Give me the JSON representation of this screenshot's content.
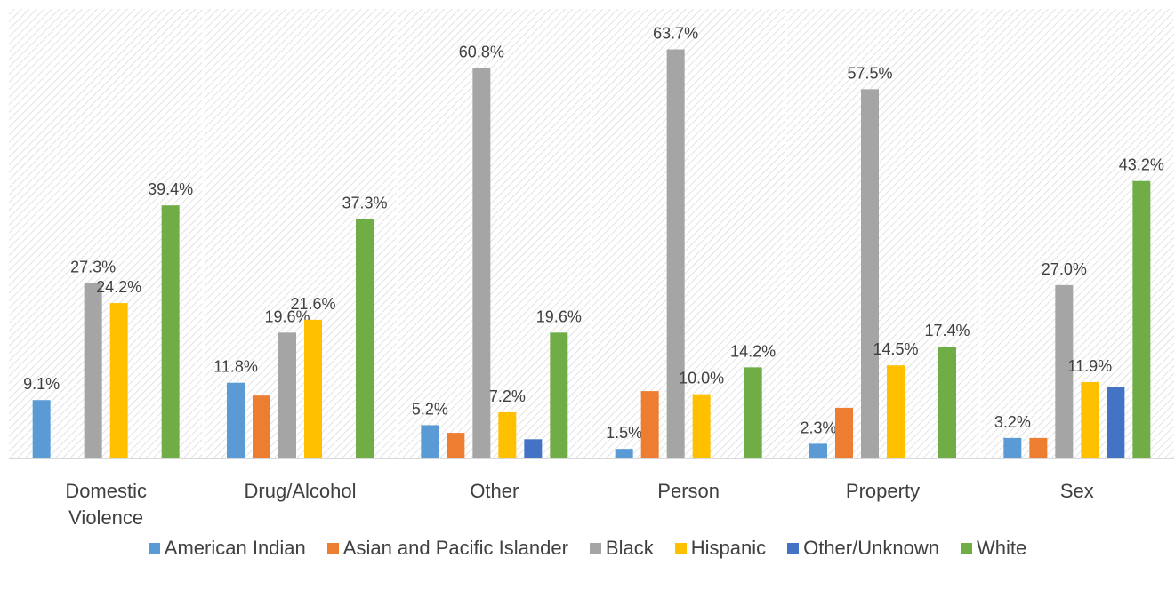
{
  "chart_data": {
    "type": "bar",
    "categories": [
      "Domestic Violence",
      "Drug/Alcohol",
      "Other",
      "Person",
      "Property",
      "Sex"
    ],
    "ylim": [
      0,
      70
    ],
    "legend": "bottom",
    "series": [
      {
        "name": "American Indian",
        "color": "#5b9bd5",
        "values": [
          9.1,
          11.8,
          5.2,
          1.5,
          2.3,
          3.2
        ],
        "value_labels": [
          "9.1%",
          "11.8%",
          "5.2%",
          "1.5%",
          "2.3%",
          "3.2%"
        ]
      },
      {
        "name": "Asian and Pacific Islander",
        "color": "#ed7d31",
        "values": [
          0,
          9.8,
          4.0,
          10.5,
          7.9,
          3.2
        ]
      },
      {
        "name": "Black",
        "color": "#a5a5a5",
        "values": [
          27.3,
          19.6,
          60.8,
          63.7,
          57.5,
          27.0
        ],
        "value_labels": [
          "27.3%",
          "19.6%",
          "60.8%",
          "63.7%",
          "57.5%",
          "27.0%"
        ]
      },
      {
        "name": "Hispanic",
        "color": "#ffc000",
        "values": [
          24.2,
          21.6,
          7.2,
          10.0,
          14.5,
          11.9
        ],
        "value_labels": [
          "24.2%",
          "21.6%",
          "7.2%",
          "10.0%",
          "14.5%",
          "11.9%"
        ]
      },
      {
        "name": "Other/Unknown",
        "color": "#4472c4",
        "values": [
          0,
          0,
          3.0,
          0,
          0.1,
          11.2
        ]
      },
      {
        "name": "White",
        "color": "#70ad47",
        "values": [
          39.4,
          37.3,
          19.6,
          14.2,
          17.4,
          43.2
        ],
        "value_labels": [
          "39.4%",
          "37.3%",
          "19.6%",
          "14.2%",
          "17.4%",
          "43.2%"
        ]
      }
    ]
  }
}
